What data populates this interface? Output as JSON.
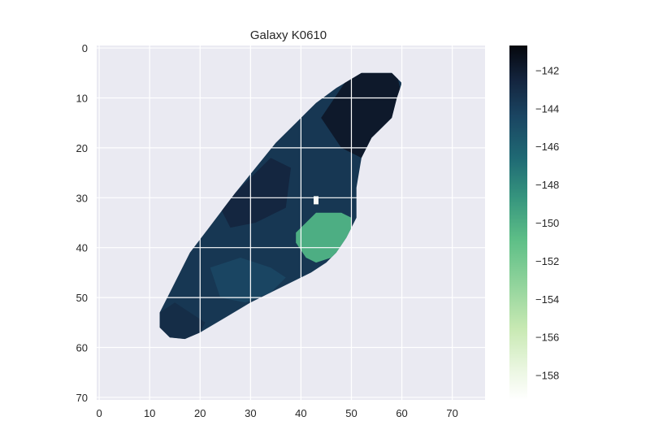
{
  "chart_data": {
    "type": "heatmap",
    "title": "Galaxy K0610",
    "xlabel": "",
    "ylabel": "",
    "xlim": [
      -0.5,
      76.5
    ],
    "ylim": [
      70.5,
      -0.5
    ],
    "y_inverted": true,
    "x_ticks": [
      0,
      10,
      20,
      30,
      40,
      50,
      60,
      70
    ],
    "y_ticks": [
      0,
      10,
      20,
      30,
      40,
      50,
      60,
      70
    ],
    "grid": true,
    "colormap": "cubehelix green-to-navy (light = low, dark = high)",
    "colorbar": {
      "min": -159.3,
      "max": -140.7,
      "ticks": [
        -142,
        -144,
        -146,
        -148,
        -150,
        -152,
        -154,
        -156,
        -158
      ],
      "tick_labels": [
        "−142",
        "−144",
        "−146",
        "−148",
        "−150",
        "−152",
        "−154",
        "−156",
        "−158"
      ]
    },
    "galaxy_region": {
      "outline_data_coords": [
        [
          52,
          5
        ],
        [
          58,
          5
        ],
        [
          60,
          7
        ],
        [
          59,
          10
        ],
        [
          58,
          14
        ],
        [
          54,
          18
        ],
        [
          52,
          22
        ],
        [
          51,
          28
        ],
        [
          51,
          34
        ],
        [
          49,
          38
        ],
        [
          47,
          41
        ],
        [
          45,
          43
        ],
        [
          42,
          45
        ],
        [
          36,
          48
        ],
        [
          30,
          51
        ],
        [
          25,
          54
        ],
        [
          20,
          57
        ],
        [
          17,
          58.3
        ],
        [
          14,
          58
        ],
        [
          12,
          56
        ],
        [
          12,
          53
        ],
        [
          14,
          49
        ],
        [
          16,
          45
        ],
        [
          18,
          41
        ],
        [
          21,
          37
        ],
        [
          24,
          33
        ],
        [
          27,
          29
        ],
        [
          31,
          24
        ],
        [
          35,
          19
        ],
        [
          39,
          15
        ],
        [
          43,
          11
        ],
        [
          47,
          8
        ]
      ],
      "background_value": -143.6,
      "zones": [
        {
          "name": "northeast core",
          "value": -141.8,
          "polygon": [
            [
              50,
              5
            ],
            [
              59,
              5
            ],
            [
              60,
              10
            ],
            [
              58,
              14
            ],
            [
              54,
              18
            ],
            [
              52,
              22
            ],
            [
              48,
              20
            ],
            [
              44,
              14
            ]
          ]
        },
        {
          "name": "central band",
          "value": -142.6,
          "polygon": [
            [
              24,
              32
            ],
            [
              30,
              26
            ],
            [
              34,
              22
            ],
            [
              38,
              24
            ],
            [
              37,
              32
            ],
            [
              31,
              35
            ],
            [
              26,
              36
            ]
          ]
        },
        {
          "name": "southwest tip",
          "value": -143.0,
          "polygon": [
            [
              12,
              53
            ],
            [
              15,
              51
            ],
            [
              18,
              53
            ],
            [
              21,
              55
            ],
            [
              20,
              57
            ],
            [
              17,
              58.3
            ],
            [
              14,
              58
            ],
            [
              12,
              56
            ]
          ]
        },
        {
          "name": "southern lobe",
          "value": -144.4,
          "polygon": [
            [
              22,
              44
            ],
            [
              28,
              42
            ],
            [
              34,
              44
            ],
            [
              37,
              46
            ],
            [
              34,
              49
            ],
            [
              29,
              51
            ],
            [
              24,
              50
            ]
          ]
        },
        {
          "name": "eastern green patch",
          "value": -150.0,
          "polygon": [
            [
              41,
              35
            ],
            [
              43,
              33
            ],
            [
              48,
              33
            ],
            [
              50,
              34
            ],
            [
              50,
              37
            ],
            [
              48,
              40
            ],
            [
              46,
              42
            ],
            [
              43,
              43
            ],
            [
              41,
              42
            ],
            [
              39,
              39
            ],
            [
              39,
              37
            ]
          ]
        }
      ],
      "min_point": {
        "x": 43,
        "y": 30.5,
        "value": -158.8
      }
    }
  }
}
